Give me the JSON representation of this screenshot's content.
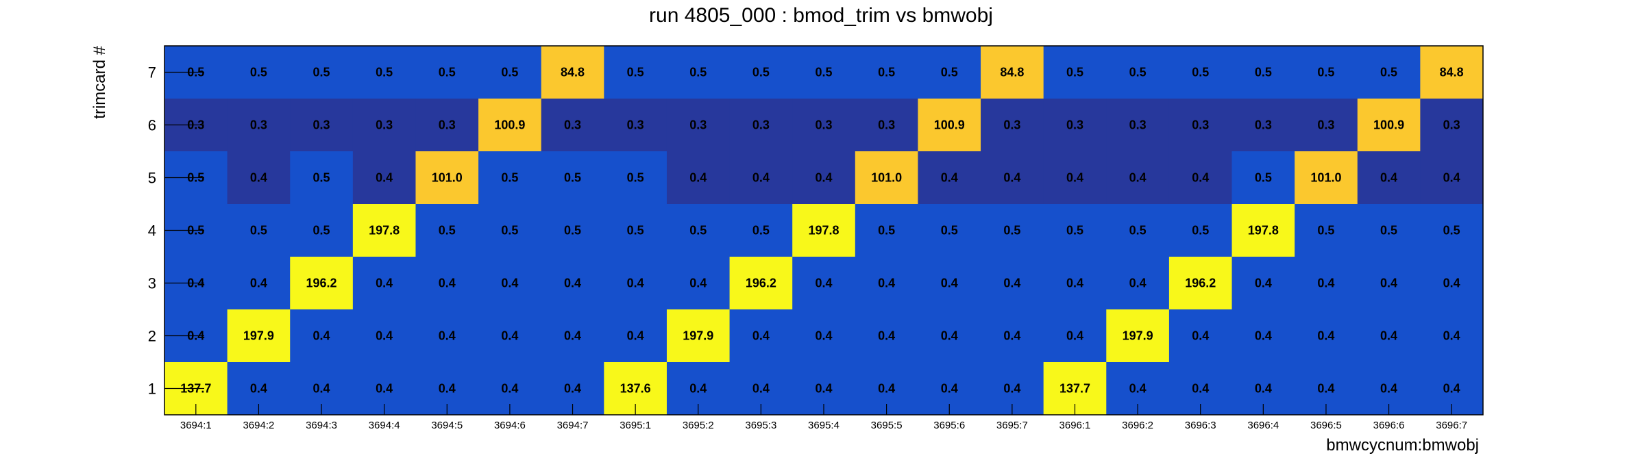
{
  "chart_data": {
    "type": "heatmap",
    "title": "run 4805_000 : bmod_trim vs bmwobj",
    "xlabel": "bmwcycnum:bmwobj",
    "ylabel": "trimcard #",
    "x_categories": [
      "3694:1",
      "3694:2",
      "3694:3",
      "3694:4",
      "3694:5",
      "3694:6",
      "3694:7",
      "3695:1",
      "3695:2",
      "3695:3",
      "3695:4",
      "3695:5",
      "3695:6",
      "3695:7",
      "3696:1",
      "3696:2",
      "3696:3",
      "3696:4",
      "3696:5",
      "3696:6",
      "3696:7"
    ],
    "y_categories": [
      "1",
      "2",
      "3",
      "4",
      "5",
      "6",
      "7"
    ],
    "rows": [
      {
        "y": "7",
        "values": [
          "0.5",
          "0.5",
          "0.5",
          "0.5",
          "0.5",
          "0.5",
          "84.8",
          "0.5",
          "0.5",
          "0.5",
          "0.5",
          "0.5",
          "0.5",
          "84.8",
          "0.5",
          "0.5",
          "0.5",
          "0.5",
          "0.5",
          "0.5",
          "84.8"
        ]
      },
      {
        "y": "6",
        "values": [
          "0.3",
          "0.3",
          "0.3",
          "0.3",
          "0.3",
          "100.9",
          "0.3",
          "0.3",
          "0.3",
          "0.3",
          "0.3",
          "0.3",
          "100.9",
          "0.3",
          "0.3",
          "0.3",
          "0.3",
          "0.3",
          "0.3",
          "100.9",
          "0.3"
        ]
      },
      {
        "y": "5",
        "values": [
          "0.5",
          "0.4",
          "0.5",
          "0.4",
          "101.0",
          "0.5",
          "0.5",
          "0.5",
          "0.4",
          "0.4",
          "0.4",
          "101.0",
          "0.4",
          "0.4",
          "0.4",
          "0.4",
          "0.4",
          "0.5",
          "101.0",
          "0.4",
          "0.4"
        ]
      },
      {
        "y": "4",
        "values": [
          "0.5",
          "0.5",
          "0.5",
          "197.8",
          "0.5",
          "0.5",
          "0.5",
          "0.5",
          "0.5",
          "0.5",
          "197.8",
          "0.5",
          "0.5",
          "0.5",
          "0.5",
          "0.5",
          "0.5",
          "197.8",
          "0.5",
          "0.5",
          "0.5"
        ]
      },
      {
        "y": "3",
        "values": [
          "0.4",
          "0.4",
          "196.2",
          "0.4",
          "0.4",
          "0.4",
          "0.4",
          "0.4",
          "0.4",
          "196.2",
          "0.4",
          "0.4",
          "0.4",
          "0.4",
          "0.4",
          "0.4",
          "196.2",
          "0.4",
          "0.4",
          "0.4",
          "0.4"
        ]
      },
      {
        "y": "2",
        "values": [
          "0.4",
          "197.9",
          "0.4",
          "0.4",
          "0.4",
          "0.4",
          "0.4",
          "0.4",
          "197.9",
          "0.4",
          "0.4",
          "0.4",
          "0.4",
          "0.4",
          "0.4",
          "197.9",
          "0.4",
          "0.4",
          "0.4",
          "0.4",
          "0.4"
        ]
      },
      {
        "y": "1",
        "values": [
          "137.7",
          "0.4",
          "0.4",
          "0.4",
          "0.4",
          "0.4",
          "0.4",
          "137.6",
          "0.4",
          "0.4",
          "0.4",
          "0.4",
          "0.4",
          "0.4",
          "137.7",
          "0.4",
          "0.4",
          "0.4",
          "0.4",
          "0.4",
          "0.4"
        ]
      }
    ],
    "colors": {
      "high": "#f8f81a",
      "medium_high": "#fbc82e",
      "low": "#1650cc",
      "lowest": "#27389c"
    },
    "grid": false
  }
}
